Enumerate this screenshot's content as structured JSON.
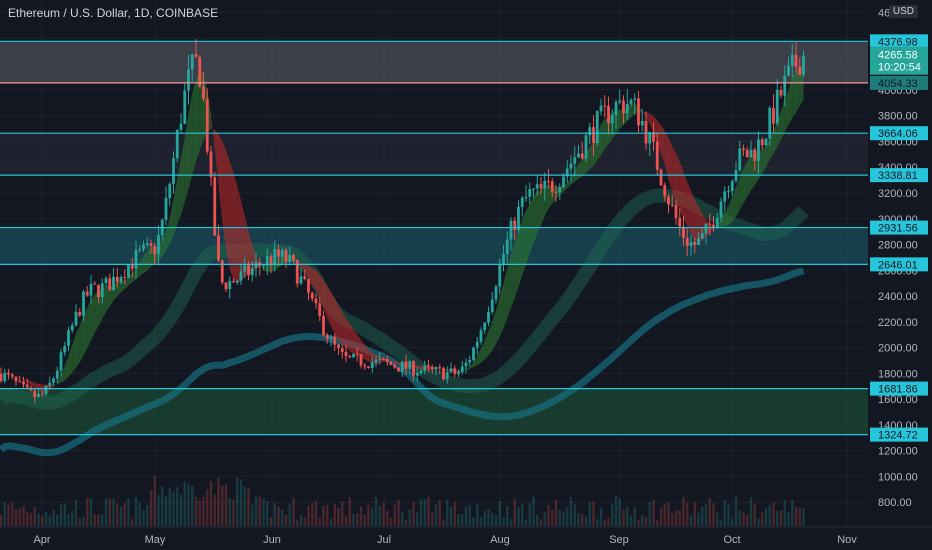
{
  "header": {
    "title": "Ethereum / U.S. Dollar, 1D, COINBASE",
    "currency": "USD"
  },
  "colors": {
    "background": "#131722",
    "up": "#26a69a",
    "down": "#ef5350",
    "level_line": "#26c6da",
    "resistance_zone": "#5d606b",
    "support_zone": "#1e5a3a",
    "teal_zone": "#1b5e6e",
    "ribbon_green": "#2e7d32",
    "ribbon_red": "#c62828",
    "ma_long": "#17707f",
    "price_tag": "#26a69a"
  },
  "chart_data": {
    "type": "candlestick",
    "title": "Ethereum / U.S. Dollar, 1D, COINBASE",
    "ylabel": "USD",
    "x_months": [
      "Apr",
      "May",
      "Jun",
      "Jul",
      "Aug",
      "Sep",
      "Oct",
      "Nov"
    ],
    "y_ticks": [
      800,
      1000,
      1200,
      1400,
      1600,
      1800,
      2000,
      2200,
      2400,
      2600,
      2800,
      3000,
      3200,
      3400,
      3600,
      3800,
      4000,
      4200,
      4400,
      4600
    ],
    "ylim": [
      700,
      4700
    ],
    "levels": [
      4376.98,
      4054.33,
      3664.06,
      3338.81,
      2931.56,
      2646.01,
      1681.86,
      1324.72
    ],
    "zones": [
      {
        "from": 4054.33,
        "to": 4376.98,
        "kind": "resistance"
      },
      {
        "from": 2646.01,
        "to": 2931.56,
        "kind": "teal"
      },
      {
        "from": 1324.72,
        "to": 1681.86,
        "kind": "support"
      }
    ],
    "last_price": "4265.58",
    "countdown": "10:20:54",
    "key_closes": [
      {
        "date": "Mar 20",
        "close": 1800
      },
      {
        "date": "Mar 31",
        "close": 1620
      },
      {
        "date": "Apr 15",
        "close": 2450
      },
      {
        "date": "Apr 30",
        "close": 2750
      },
      {
        "date": "May 12",
        "close": 4200
      },
      {
        "date": "May 19",
        "close": 2500
      },
      {
        "date": "Jun 3",
        "close": 2700
      },
      {
        "date": "Jun 22",
        "close": 1900
      },
      {
        "date": "Jul 20",
        "close": 1800
      },
      {
        "date": "Aug 10",
        "close": 3200
      },
      {
        "date": "Sep 3",
        "close": 3900
      },
      {
        "date": "Sep 21",
        "close": 2800
      },
      {
        "date": "Oct 5",
        "close": 3500
      },
      {
        "date": "Oct 21",
        "close": 4265.58
      }
    ]
  }
}
